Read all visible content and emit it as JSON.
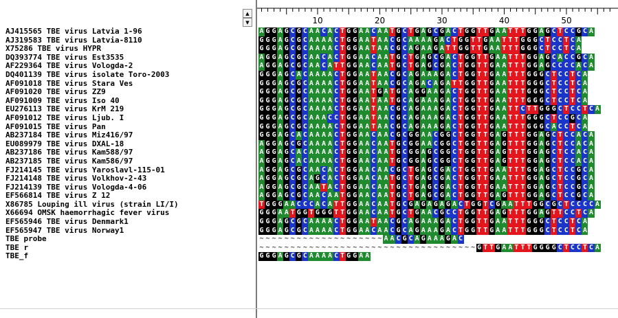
{
  "app": {
    "title": ""
  },
  "colors": {
    "A": "#1f8a2e",
    "G": "#000000",
    "C": "#1a35c8",
    "T": "#e3161d"
  },
  "ruler": {
    "labels": [
      "10",
      "20",
      "30",
      "40",
      "50"
    ]
  },
  "sequences": [
    {
      "name": "AJ415565 TBE virus Latvia 1-96",
      "seq": "AGGAGCGCAACACTGGAACAATGCTGAGCGACTGGTTGAATTTGGAGCTCCGCA"
    },
    {
      "name": "AJ319583 TBE virus Latvia-8110",
      "seq": "GGGAGCGCAAAACTGGAATAACGCAAAAGACTGGTTGAATTTGGGCTCCTCA"
    },
    {
      "name": "X75286 TBE virus HYPR",
      "seq": "GGGAGCGCAAAACTGGAATAACGCAGAAGATTGGTTGAATTTGGGCTCCTCA"
    },
    {
      "name": "DQ393774 TBE virus Est3535",
      "seq": "AGGAGCGCAACACTGGAACAATGCTGAGCGACTGGTTGAATTTGGAGCACCGCA"
    },
    {
      "name": "AF229364 TBE virus Vologda-2",
      "seq": "AGGAGCGCAACATTGGAACAATGCTGAGCGACTGGTTGAATTTGGAGCCCCACA"
    },
    {
      "name": "DQ401139 TBE virus isolate Toro-2003",
      "seq": "GGGAGCACAAAACTGGAATAACGCAGAAAGACTGGTTGAATTTGGGCTCCTCA"
    },
    {
      "name": "AF091018 TBE virus Stara Ves",
      "seq": "GGGAGCGCAAAACTGGAATAACGCAGACAGATTGGTTGAATTTGGGCTCCTCA"
    },
    {
      "name": "AF091020 TBE virus ZZ9",
      "seq": "GGGAGCGCAAAACTGGAATGATGCAGGAAGACTGGTTGAATTTGGGCTCCTCA"
    },
    {
      "name": "AF091009 TBE virus Iso 40",
      "seq": "GGGAGCGCAAAACTGGAATAATGCAGAAAGACTGGTTGAATTTGGGCTCCTCA"
    },
    {
      "name": "EU276113 TBE virus KrM 219",
      "seq": "GGGAGCGCAAAACTGGAATAACGCAGAAAGACTGGTTGAATTCTTGGGCTCCTCA"
    },
    {
      "name": "AF091012 TBE virus Ljub. I",
      "seq": "GGGAGCGCAAACCTGGAATAACGCAGAAAGACTGGTTGAATTTGGGCTCCGCA"
    },
    {
      "name": "AF091015 TBE virus Pan",
      "seq": "GGGAGCGCAAAACTGGAATAACGCAGAAAGACTGGTTGAATTTGGGCACCTCA"
    },
    {
      "name": "AB237184 TBE virus Miz416/97",
      "seq": "GGGAGCACAAAACTGGAACAACGCGGAACGGCTGGTTGAGTTTGGAGCTCCACA"
    },
    {
      "name": "EU089979 TBE virus DXAL-18",
      "seq": "AGGAGCGCAAAACTGGAACAATGCGGAACGGCTGGTTGAGTTTGGAGCTCCACA"
    },
    {
      "name": "AB237186 TBE virus Kam588/97",
      "seq": "AGGAGCACAAAACTGGAACAATGCGGAGCGGCTGGTTGAGTTTGGAGCTCCACA"
    },
    {
      "name": "AB237185 TBE virus Kam586/97",
      "seq": "AGGAGCACAAAACTGGAACAATGCGGAGCGGCTGGTTGAGTTTGGAGCTCCACA"
    },
    {
      "name": "FJ214145 TBE virus Yaroslavl-115-01",
      "seq": "AGGAGCGCAACACTGGAACAACGCTGAGCGACTGGTTGAATTTGGAGCTCCGCA"
    },
    {
      "name": "FJ214148 TBE virus Volkhov-2-43",
      "seq": "AGGAGCGCAGCACTGGAACAATGCTGAGCGACTGGTTGAATTTGGAGCTCCGCA"
    },
    {
      "name": "FJ214139 TBE virus Vologda-4-06",
      "seq": "AGGAGCGCAATACTGGAACAATGCTGAGCGACTGGTTGAATTTGGAGCTCCGCA"
    },
    {
      "name": "EF566814 TBE virus Z 12",
      "seq": "AGGAGCGCAACAATGGAACAATGCTGAGCGACTGGTTGAGTTTGGAGCTCCGCA"
    },
    {
      "name": "X86785 Louping ill virus (strain LI/I)",
      "seq": "TGGGAACCCACATTGGAACAATGCGAGAGAGACTGGTCGAATTTGGCGCTCCCCA"
    },
    {
      "name": "X66694 OMSK haemorrhagic fever virus",
      "seq": "GGGAATGGTGGGTTGGAACAATGCTGAACGCCTGGTTGAGTTTGGAGTTCCTCA"
    },
    {
      "name": "EF565946 TBE virus Denmark1",
      "seq": "GGGAGCGCAAAACTGGAATAACGCAGAAAGACTGGTTGAATTTGGGCTCCTCA"
    },
    {
      "name": "EF565947 TBE virus Norway1",
      "seq": "GGGAGCGCAAAACTGGAACAACGCAGAAAGACTGGTTGAATTTGGGCTCCTCA"
    },
    {
      "name": "TBE probe",
      "seq": "~~~~~~~~~~~~~~~~~~~~AACGCAGAAAGAC"
    },
    {
      "name": "TBE r",
      "seq": "~~~~~~~~~~~~~~~~~~~~~~~~~~~~~~~~~~~GTTGAATTTGGGGCTCCTCA"
    },
    {
      "name": "TBE_f",
      "seq": "GGGAGCGCAAAACTGGAA"
    }
  ]
}
